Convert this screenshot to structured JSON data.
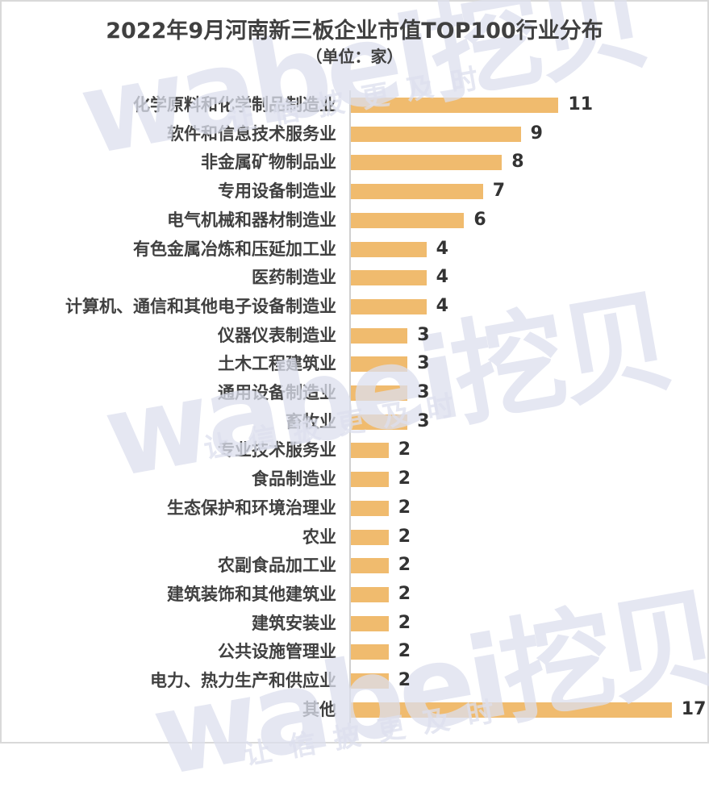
{
  "chart_data": {
    "type": "bar",
    "orientation": "horizontal",
    "title": "2022年9月河南新三板企业市值TOP100行业分布",
    "subtitle": "（单位：家）",
    "xlabel": "",
    "ylabel": "",
    "grid": false,
    "legend": null,
    "bar_color": "#f0bb6e",
    "xlim": [
      0,
      17
    ],
    "categories": [
      "化学原料和化学制品制造业",
      "软件和信息技术服务业",
      "非金属矿物制品业",
      "专用设备制造业",
      "电气机械和器材制造业",
      "有色金属冶炼和压延加工业",
      "医药制造业",
      "计算机、通信和其他电子设备制造业",
      "仪器仪表制造业",
      "土木工程建筑业",
      "通用设备制造业",
      "畜牧业",
      "专业技术服务业",
      "食品制造业",
      "生态保护和环境治理业",
      "农业",
      "农副食品加工业",
      "建筑装饰和其他建筑业",
      "建筑安装业",
      "公共设施管理业",
      "电力、热力生产和供应业",
      "其他"
    ],
    "values": [
      11,
      9,
      8,
      7,
      6,
      4,
      4,
      4,
      3,
      3,
      3,
      3,
      2,
      2,
      2,
      2,
      2,
      2,
      2,
      2,
      2,
      17
    ]
  },
  "watermark": {
    "brand": "wabei挖贝",
    "slogan": "让信披更及时"
  }
}
